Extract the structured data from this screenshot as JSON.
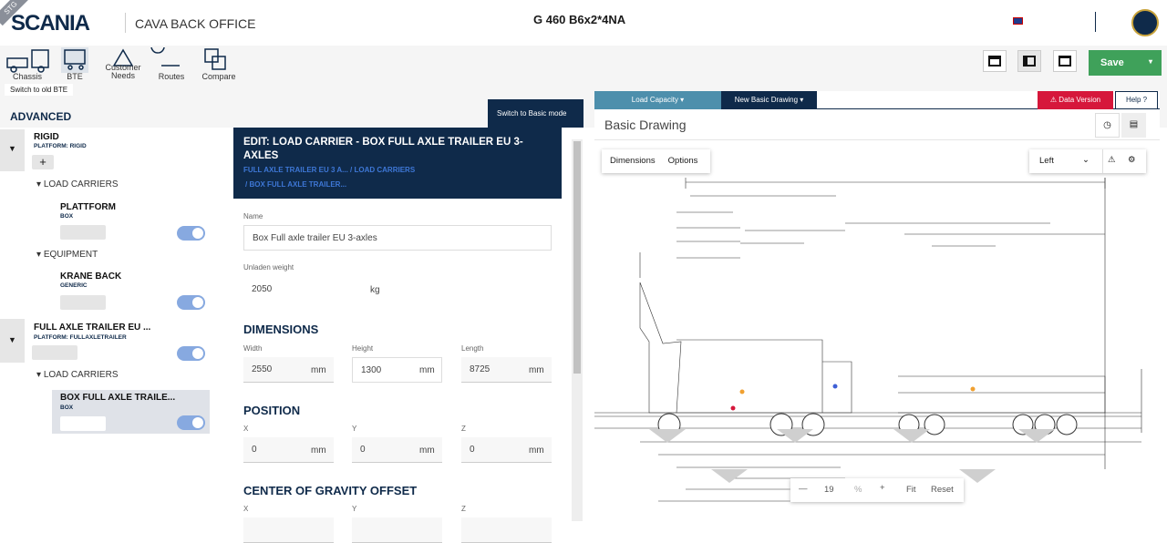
{
  "header": {
    "badge": "STG",
    "brand": "SCANIA",
    "app": "CAVA BACK OFFICE",
    "vehicle": "G 460 B6x2*4NA"
  },
  "toolbar": {
    "items": [
      "Chassis",
      "BTE",
      "Customer Needs",
      "Routes",
      "Compare"
    ],
    "switch_old": "Switch to old BTE",
    "save": "Save"
  },
  "left": {
    "title": "ADVANCED",
    "switch_basic": "Switch to Basic mode",
    "tree": [
      {
        "label": "RIGID",
        "sub": "PLATFORM: RIGID"
      },
      {
        "label": "LOAD CARRIERS"
      },
      {
        "label": "PLATTFORM",
        "sub": "BOX"
      },
      {
        "label": "EQUIPMENT"
      },
      {
        "label": "KRANE BACK",
        "sub": "GENERIC"
      },
      {
        "label": "FULL AXLE TRAILER EU ...",
        "sub": "PLATFORM: FULLAXLETRAILER"
      },
      {
        "label": "LOAD CARRIERS"
      },
      {
        "label": "BOX FULL AXLE TRAILE...",
        "sub": "BOX"
      }
    ]
  },
  "form": {
    "title": "EDIT: LOAD CARRIER - BOX FULL AXLE TRAILER EU 3-AXLES",
    "crumb1": "FULL AXLE TRAILER EU 3 A... / LOAD CARRIERS",
    "crumb2": "/ BOX FULL AXLE TRAILER...",
    "name_label": "Name",
    "name": "Box Full axle trailer EU 3-axles",
    "weight_label": "Unladen weight",
    "weight": "2050",
    "weight_unit": "kg",
    "dimensions": {
      "title": "DIMENSIONS",
      "fields": [
        {
          "label": "Width",
          "value": "2550",
          "unit": "mm"
        },
        {
          "label": "Height",
          "value": "1300",
          "unit": "mm"
        },
        {
          "label": "Length",
          "value": "8725",
          "unit": "mm"
        }
      ]
    },
    "position": {
      "title": "POSITION",
      "fields": [
        {
          "label": "X",
          "value": "0",
          "unit": "mm"
        },
        {
          "label": "Y",
          "value": "0",
          "unit": "mm"
        },
        {
          "label": "Z",
          "value": "0",
          "unit": "mm"
        }
      ]
    },
    "cog": {
      "title": "CENTER OF GRAVITY OFFSET",
      "fields": [
        {
          "label": "X"
        },
        {
          "label": "Y"
        },
        {
          "label": "Z"
        }
      ]
    }
  },
  "drawing": {
    "tab1": "Load Capacity",
    "tab2": "New Basic Drawing",
    "data_version": "Data Version",
    "help": "Help",
    "heading": "Basic Drawing",
    "dimensions": "Dimensions",
    "options": "Options",
    "side": "Left",
    "zoom": "19",
    "zoom_unit": "%",
    "fit": "Fit",
    "reset": "Reset"
  }
}
